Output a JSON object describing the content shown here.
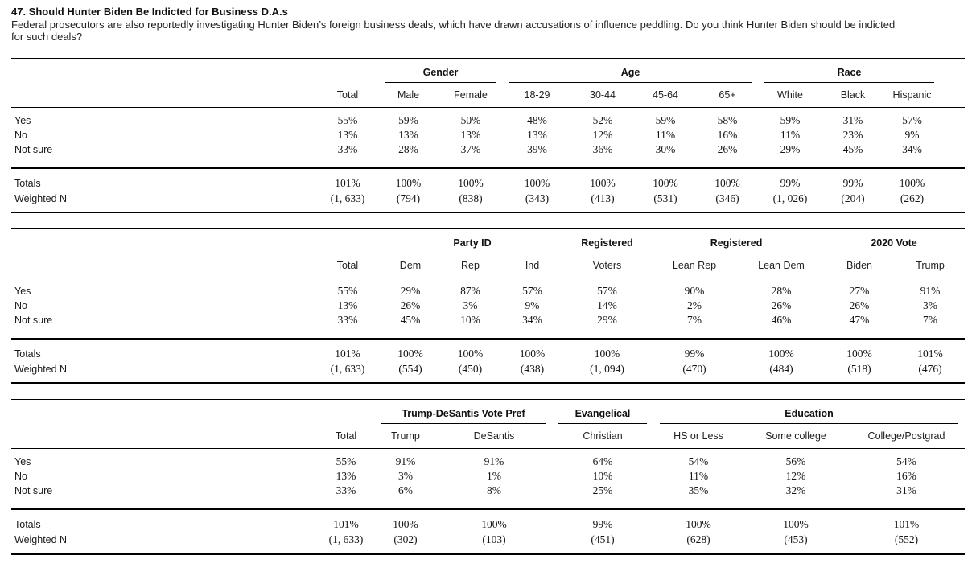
{
  "document": {
    "title": "47. Should Hunter Biden Be Indicted for Business D.A.s",
    "question": "Federal prosecutors are also reportedly investigating Hunter Biden’s foreign business deals, which have drawn accusations of influence peddling. Do you think Hunter Biden should be indicted for such deals?"
  },
  "tables": [
    {
      "groups": [
        {
          "label": "",
          "span": 1
        },
        {
          "label": "Gender",
          "span": 2
        },
        {
          "label": "Age",
          "span": 4
        },
        {
          "label": "Race",
          "span": 3
        }
      ],
      "columns": [
        "Total",
        "Male",
        "Female",
        "18-29",
        "30-44",
        "45-64",
        "65+",
        "White",
        "Black",
        "Hispanic"
      ],
      "rows": [
        {
          "label": "Yes",
          "values": [
            "55%",
            "59%",
            "50%",
            "48%",
            "52%",
            "59%",
            "58%",
            "59%",
            "31%",
            "57%"
          ]
        },
        {
          "label": "No",
          "values": [
            "13%",
            "13%",
            "13%",
            "13%",
            "12%",
            "11%",
            "16%",
            "11%",
            "23%",
            "9%"
          ]
        },
        {
          "label": "Not sure",
          "values": [
            "33%",
            "28%",
            "37%",
            "39%",
            "36%",
            "30%",
            "26%",
            "29%",
            "45%",
            "34%"
          ]
        }
      ],
      "footer_rows": [
        {
          "label": "Totals",
          "values": [
            "101%",
            "100%",
            "100%",
            "100%",
            "100%",
            "100%",
            "100%",
            "99%",
            "99%",
            "100%"
          ]
        },
        {
          "label": "Weighted N",
          "values": [
            "(1, 633)",
            "(794)",
            "(838)",
            "(343)",
            "(413)",
            "(531)",
            "(346)",
            "(1, 026)",
            "(204)",
            "(262)"
          ]
        }
      ]
    },
    {
      "groups": [
        {
          "label": "",
          "span": 1
        },
        {
          "label": "Party ID",
          "span": 3
        },
        {
          "label": "Registered",
          "span": 1
        },
        {
          "label": "Registered",
          "span": 2
        },
        {
          "label": "2020 Vote",
          "span": 2
        }
      ],
      "columns": [
        "Total",
        "Dem",
        "Rep",
        "Ind",
        "Voters",
        "Lean Rep",
        "Lean Dem",
        "Biden",
        "Trump"
      ],
      "rows": [
        {
          "label": "Yes",
          "values": [
            "55%",
            "29%",
            "87%",
            "57%",
            "57%",
            "90%",
            "28%",
            "27%",
            "91%"
          ]
        },
        {
          "label": "No",
          "values": [
            "13%",
            "26%",
            "3%",
            "9%",
            "14%",
            "2%",
            "26%",
            "26%",
            "3%"
          ]
        },
        {
          "label": "Not sure",
          "values": [
            "33%",
            "45%",
            "10%",
            "34%",
            "29%",
            "7%",
            "46%",
            "47%",
            "7%"
          ]
        }
      ],
      "footer_rows": [
        {
          "label": "Totals",
          "values": [
            "101%",
            "100%",
            "100%",
            "100%",
            "100%",
            "99%",
            "100%",
            "100%",
            "101%"
          ]
        },
        {
          "label": "Weighted N",
          "values": [
            "(1, 633)",
            "(554)",
            "(450)",
            "(438)",
            "(1, 094)",
            "(470)",
            "(484)",
            "(518)",
            "(476)"
          ]
        }
      ]
    },
    {
      "groups": [
        {
          "label": "",
          "span": 1
        },
        {
          "label": "Trump-DeSantis Vote Pref",
          "span": 2
        },
        {
          "label": "Evangelical",
          "span": 1
        },
        {
          "label": "Education",
          "span": 3
        }
      ],
      "columns": [
        "Total",
        "Trump",
        "DeSantis",
        "Christian",
        "HS or Less",
        "Some college",
        "College/Postgrad"
      ],
      "rows": [
        {
          "label": "Yes",
          "values": [
            "55%",
            "91%",
            "91%",
            "64%",
            "54%",
            "56%",
            "54%"
          ]
        },
        {
          "label": "No",
          "values": [
            "13%",
            "3%",
            "1%",
            "10%",
            "11%",
            "12%",
            "16%"
          ]
        },
        {
          "label": "Not sure",
          "values": [
            "33%",
            "6%",
            "8%",
            "25%",
            "35%",
            "32%",
            "31%"
          ]
        }
      ],
      "footer_rows": [
        {
          "label": "Totals",
          "values": [
            "101%",
            "100%",
            "100%",
            "99%",
            "100%",
            "100%",
            "101%"
          ]
        },
        {
          "label": "Weighted N",
          "values": [
            "(1, 633)",
            "(302)",
            "(103)",
            "(451)",
            "(628)",
            "(453)",
            "(552)"
          ]
        }
      ]
    }
  ]
}
